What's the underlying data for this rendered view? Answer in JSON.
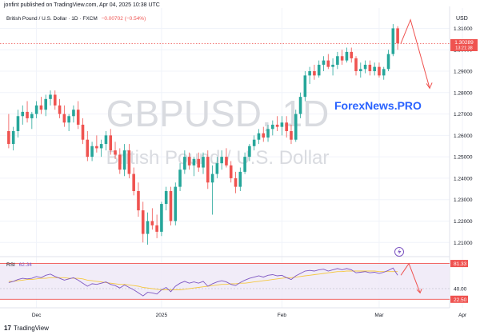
{
  "attribution": "jonfint published on TradingView.com, Apr 04, 2025 10:38 UTC",
  "footer_brand": "TradingView",
  "footer_logo": "17",
  "icons": {
    "footer_logo": "tradingview-logo-icon",
    "lightning": "lightning-icon"
  },
  "colors": {
    "up": "#26a69a",
    "down": "#ef5350",
    "rsi_line": "#7e57c2",
    "rsi_band": "#ede7f6",
    "rsi_ma": "#f5c842",
    "price_tag": "#ef5350",
    "watermark": "#d9dbe0",
    "brand": "#2962ff",
    "arrow": "#ef5350"
  },
  "chart_data": {
    "type": "candlestick",
    "symbol_line": "British Pound / U.S. Dollar · 1D · FXCM",
    "change_text": "−0.00702 (−0.54%)",
    "watermark_symbol": "GBPUSD, 1D",
    "watermark_name": "British Pound / U.S. Dollar",
    "brand_label": "ForexNews.PRO",
    "currency_label": "USD",
    "price_axis": {
      "ticks": [
        "1.31000",
        "1.30000",
        "1.29000",
        "1.28000",
        "1.27000",
        "1.26000",
        "1.25000",
        "1.24000",
        "1.23000",
        "1.22000",
        "1.21000"
      ],
      "range": [
        1.2045,
        1.3195
      ]
    },
    "last_price": "1.30289",
    "countdown": "13:21:38",
    "x_labels": [
      "Dec",
      "2025",
      "Feb",
      "Mar",
      "Apr"
    ],
    "ohlc": [
      [
        1.262,
        1.27,
        1.254,
        1.256
      ],
      [
        1.256,
        1.264,
        1.253,
        1.262
      ],
      [
        1.262,
        1.272,
        1.259,
        1.269
      ],
      [
        1.269,
        1.274,
        1.265,
        1.271
      ],
      [
        1.271,
        1.276,
        1.266,
        1.268
      ],
      [
        1.268,
        1.271,
        1.263,
        1.27
      ],
      [
        1.27,
        1.276,
        1.268,
        1.274
      ],
      [
        1.274,
        1.278,
        1.27,
        1.272
      ],
      [
        1.272,
        1.279,
        1.269,
        1.277
      ],
      [
        1.277,
        1.281,
        1.274,
        1.279
      ],
      [
        1.279,
        1.281,
        1.272,
        1.274
      ],
      [
        1.274,
        1.277,
        1.268,
        1.27
      ],
      [
        1.27,
        1.274,
        1.264,
        1.266
      ],
      [
        1.266,
        1.27,
        1.262,
        1.269
      ],
      [
        1.269,
        1.274,
        1.266,
        1.272
      ],
      [
        1.272,
        1.276,
        1.263,
        1.265
      ],
      [
        1.265,
        1.268,
        1.256,
        1.258
      ],
      [
        1.258,
        1.262,
        1.248,
        1.25
      ],
      [
        1.25,
        1.257,
        1.248,
        1.255
      ],
      [
        1.255,
        1.26,
        1.252,
        1.254
      ],
      [
        1.254,
        1.258,
        1.25,
        1.256
      ],
      [
        1.256,
        1.262,
        1.253,
        1.26
      ],
      [
        1.26,
        1.263,
        1.251,
        1.253
      ],
      [
        1.253,
        1.257,
        1.249,
        1.251
      ],
      [
        1.251,
        1.254,
        1.242,
        1.244
      ],
      [
        1.244,
        1.256,
        1.241,
        1.253
      ],
      [
        1.253,
        1.256,
        1.24,
        1.242
      ],
      [
        1.242,
        1.245,
        1.232,
        1.234
      ],
      [
        1.234,
        1.238,
        1.222,
        1.225
      ],
      [
        1.225,
        1.229,
        1.21,
        1.214
      ],
      [
        1.214,
        1.224,
        1.209,
        1.22
      ],
      [
        1.22,
        1.226,
        1.216,
        1.218
      ],
      [
        1.218,
        1.223,
        1.212,
        1.215
      ],
      [
        1.215,
        1.229,
        1.213,
        1.228
      ],
      [
        1.228,
        1.236,
        1.225,
        1.234
      ],
      [
        1.234,
        1.236,
        1.218,
        1.22
      ],
      [
        1.22,
        1.238,
        1.218,
        1.236
      ],
      [
        1.236,
        1.247,
        1.234,
        1.244
      ],
      [
        1.244,
        1.253,
        1.242,
        1.25
      ],
      [
        1.25,
        1.252,
        1.244,
        1.246
      ],
      [
        1.246,
        1.25,
        1.241,
        1.249
      ],
      [
        1.249,
        1.252,
        1.243,
        1.245
      ],
      [
        1.245,
        1.252,
        1.242,
        1.25
      ],
      [
        1.25,
        1.253,
        1.235,
        1.238
      ],
      [
        1.238,
        1.246,
        1.223,
        1.242
      ],
      [
        1.242,
        1.25,
        1.24,
        1.247
      ],
      [
        1.247,
        1.253,
        1.244,
        1.25
      ],
      [
        1.25,
        1.254,
        1.245,
        1.246
      ],
      [
        1.246,
        1.248,
        1.238,
        1.24
      ],
      [
        1.24,
        1.243,
        1.233,
        1.236
      ],
      [
        1.236,
        1.245,
        1.234,
        1.243
      ],
      [
        1.243,
        1.252,
        1.242,
        1.25
      ],
      [
        1.25,
        1.256,
        1.248,
        1.255
      ],
      [
        1.255,
        1.26,
        1.253,
        1.258
      ],
      [
        1.258,
        1.263,
        1.256,
        1.261
      ],
      [
        1.261,
        1.264,
        1.257,
        1.259
      ],
      [
        1.259,
        1.265,
        1.257,
        1.263
      ],
      [
        1.263,
        1.267,
        1.26,
        1.265
      ],
      [
        1.265,
        1.269,
        1.262,
        1.264
      ],
      [
        1.264,
        1.269,
        1.26,
        1.266
      ],
      [
        1.266,
        1.269,
        1.259,
        1.262
      ],
      [
        1.262,
        1.265,
        1.256,
        1.258
      ],
      [
        1.258,
        1.272,
        1.257,
        1.27
      ],
      [
        1.27,
        1.28,
        1.268,
        1.278
      ],
      [
        1.278,
        1.29,
        1.276,
        1.288
      ],
      [
        1.288,
        1.292,
        1.284,
        1.29
      ],
      [
        1.29,
        1.293,
        1.286,
        1.288
      ],
      [
        1.288,
        1.295,
        1.287,
        1.293
      ],
      [
        1.293,
        1.297,
        1.29,
        1.295
      ],
      [
        1.295,
        1.298,
        1.291,
        1.292
      ],
      [
        1.292,
        1.296,
        1.288,
        1.293
      ],
      [
        1.293,
        1.299,
        1.291,
        1.297
      ],
      [
        1.297,
        1.3,
        1.293,
        1.295
      ],
      [
        1.295,
        1.301,
        1.294,
        1.299
      ],
      [
        1.299,
        1.301,
        1.294,
        1.296
      ],
      [
        1.296,
        1.297,
        1.288,
        1.29
      ],
      [
        1.29,
        1.294,
        1.287,
        1.291
      ],
      [
        1.291,
        1.295,
        1.289,
        1.293
      ],
      [
        1.293,
        1.295,
        1.288,
        1.29
      ],
      [
        1.29,
        1.294,
        1.288,
        1.292
      ],
      [
        1.292,
        1.294,
        1.287,
        1.288
      ],
      [
        1.288,
        1.292,
        1.286,
        1.291
      ],
      [
        1.291,
        1.3,
        1.29,
        1.298
      ],
      [
        1.298,
        1.312,
        1.297,
        1.31
      ],
      [
        1.31,
        1.311,
        1.3,
        1.303
      ]
    ],
    "projection_prices": [
      1.303,
      1.314,
      1.282
    ],
    "rsi": {
      "label": "RSI",
      "value_text": "62.34",
      "levels": {
        "upper": 81.33,
        "middle": 40.0,
        "lower": 22.5
      },
      "level_labels": [
        "81.33",
        "40.00",
        "22.50"
      ],
      "range": [
        15,
        90
      ],
      "values": [
        50,
        52,
        55,
        57,
        56,
        57,
        60,
        58,
        62,
        64,
        60,
        57,
        54,
        56,
        58,
        54,
        49,
        44,
        48,
        47,
        49,
        51,
        47,
        45,
        41,
        46,
        42,
        38,
        33,
        28,
        34,
        33,
        31,
        38,
        42,
        35,
        44,
        49,
        52,
        49,
        51,
        49,
        52,
        44,
        48,
        51,
        53,
        51,
        47,
        45,
        50,
        54,
        57,
        59,
        61,
        59,
        62,
        63,
        61,
        62,
        58,
        55,
        61,
        65,
        69,
        70,
        69,
        71,
        72,
        69,
        71,
        73,
        71,
        73,
        71,
        66,
        67,
        68,
        66,
        67,
        65,
        67,
        70,
        74,
        62
      ],
      "ma_values": [
        52,
        52,
        53,
        54,
        55,
        55,
        56,
        57,
        57,
        58,
        58,
        58,
        58,
        57,
        57,
        57,
        56,
        54,
        53,
        52,
        51,
        50,
        49,
        48,
        47,
        47,
        46,
        45,
        44,
        42,
        41,
        40,
        39,
        38,
        38,
        38,
        38,
        38,
        39,
        40,
        41,
        42,
        43,
        44,
        45,
        46,
        47,
        47,
        48,
        48,
        49,
        49,
        50,
        51,
        52,
        53,
        54,
        55,
        56,
        57,
        58,
        58,
        59,
        60,
        61,
        62,
        63,
        64,
        65,
        66,
        67,
        68,
        68,
        69,
        69,
        69,
        69,
        69,
        69,
        69,
        68,
        68,
        68,
        68,
        68
      ]
    }
  }
}
